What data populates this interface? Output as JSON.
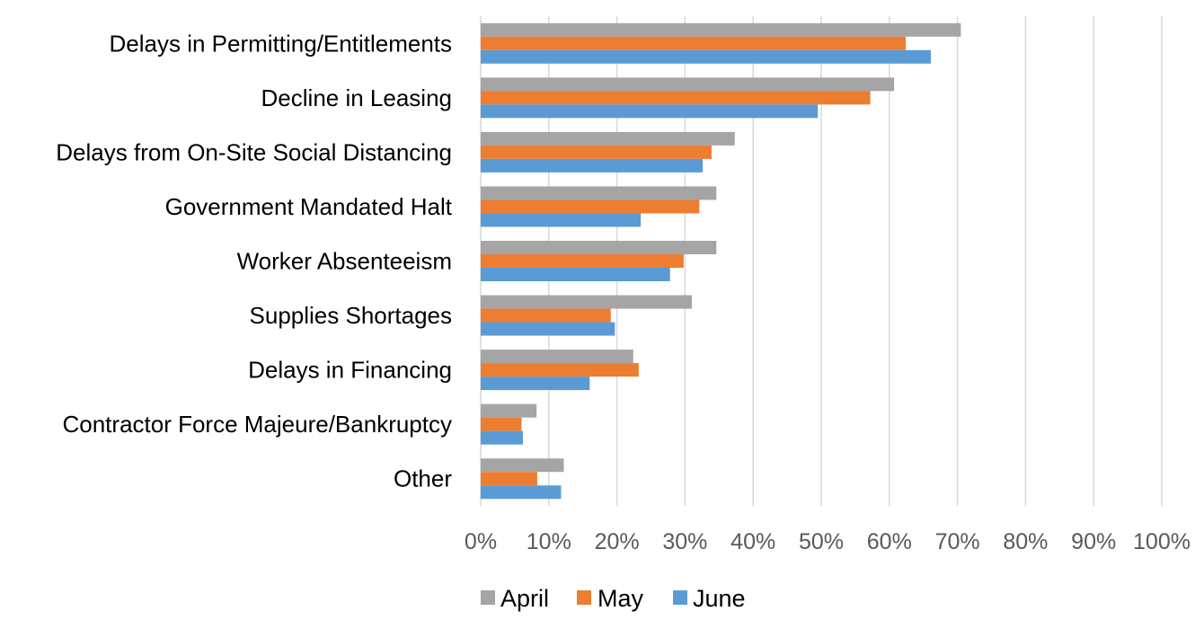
{
  "chart_data": {
    "type": "bar",
    "orientation": "horizontal",
    "title": "",
    "xlabel": "",
    "ylabel": "",
    "categories": [
      "Delays in Permitting/Entitlements",
      "Decline in Leasing",
      "Delays from On-Site Social Distancing",
      "Government Mandated Halt",
      "Worker Absenteeism",
      "Supplies Shortages",
      "Delays in Financing",
      "Contractor Force Majeure/Bankruptcy",
      "Other"
    ],
    "series": [
      {
        "name": "April",
        "color": "#a5a5a5",
        "values": [
          70.5,
          60.7,
          37.3,
          34.6,
          34.6,
          31.0,
          22.4,
          8.2,
          12.2
        ]
      },
      {
        "name": "May",
        "color": "#ed7d31",
        "values": [
          62.4,
          57.2,
          33.9,
          32.1,
          29.8,
          19.1,
          23.2,
          6.0,
          8.3
        ]
      },
      {
        "name": "June",
        "color": "#5b9bd5",
        "values": [
          66.1,
          49.5,
          32.6,
          23.5,
          27.8,
          19.7,
          16.0,
          6.2,
          11.8
        ]
      }
    ],
    "xlim": [
      0,
      100
    ],
    "xticks": [
      0,
      10,
      20,
      30,
      40,
      50,
      60,
      70,
      80,
      90,
      100
    ],
    "tick_format": "{v}%",
    "grid": "vertical",
    "legend": "bottom"
  }
}
